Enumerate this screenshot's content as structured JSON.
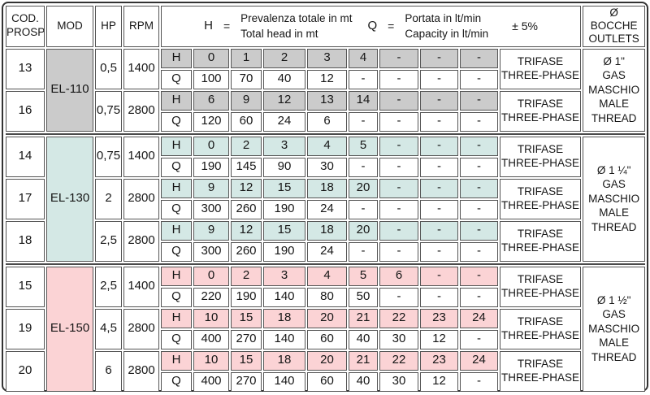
{
  "header": {
    "cod_line1": "COD.",
    "cod_line2": "PROSP.",
    "mod": "MOD",
    "hp": "HP",
    "rpm": "RPM",
    "h_symbol": "H",
    "h_equals": "=",
    "h_it": "Prevalenza totale in mt",
    "h_en": "Total head in mt",
    "q_symbol": "Q",
    "q_equals": "=",
    "q_it": "Portata in lt/min",
    "q_en": "Capacity in lt/min",
    "tolerance": "± 5%",
    "outlets_symbol": "Ø",
    "outlets_it": "BOCCHE",
    "outlets_en": "OUTLETS"
  },
  "row_labels": {
    "head": "H",
    "flow": "Q"
  },
  "colors": {
    "el110": "#cbcbcb",
    "el130": "#d4e8e5",
    "el150": "#fbd3d5",
    "cell_border": "#555555",
    "frame_border": "#333333"
  },
  "groups": [
    {
      "model": "EL-110",
      "color_key": "el110",
      "outlet_lines": [
        "Ø 1\"",
        "GAS",
        "MASCHIO",
        "MALE",
        "THREAD"
      ],
      "rows": [
        {
          "cod": "13",
          "hp": "0,5",
          "rpm": "1400",
          "h": [
            "0",
            "1",
            "2",
            "3",
            "4",
            "-",
            "-",
            "-"
          ],
          "q": [
            "100",
            "70",
            "40",
            "12",
            "-",
            "-",
            "-",
            "-"
          ],
          "phase_lines": [
            "TRIFASE",
            "THREE-PHASE"
          ]
        },
        {
          "cod": "16",
          "hp": "0,75",
          "rpm": "2800",
          "h": [
            "6",
            "9",
            "12",
            "13",
            "14",
            "-",
            "-",
            "-"
          ],
          "q": [
            "120",
            "60",
            "24",
            "6",
            "-",
            "-",
            "-",
            "-"
          ],
          "phase_lines": [
            "TRIFASE",
            "THREE-PHASE"
          ]
        }
      ]
    },
    {
      "model": "EL-130",
      "color_key": "el130",
      "outlet_lines": [
        "Ø 1 ¼\"",
        "GAS",
        "MASCHIO",
        "MALE",
        "THREAD"
      ],
      "rows": [
        {
          "cod": "14",
          "hp": "0,75",
          "rpm": "1400",
          "h": [
            "0",
            "2",
            "3",
            "4",
            "5",
            "-",
            "-",
            "-"
          ],
          "q": [
            "190",
            "145",
            "90",
            "30",
            "-",
            "-",
            "-",
            "-"
          ],
          "phase_lines": [
            "TRIFASE",
            "THREE-PHASE"
          ]
        },
        {
          "cod": "17",
          "hp": "2",
          "rpm": "2800",
          "h": [
            "9",
            "12",
            "15",
            "18",
            "20",
            "-",
            "-",
            "-"
          ],
          "q": [
            "300",
            "260",
            "190",
            "24",
            "-",
            "-",
            "-",
            "-"
          ],
          "phase_lines": [
            "TRIFASE",
            "THREE-PHASE"
          ]
        },
        {
          "cod": "18",
          "hp": "2,5",
          "rpm": "2800",
          "h": [
            "9",
            "12",
            "15",
            "18",
            "20",
            "-",
            "-",
            "-"
          ],
          "q": [
            "300",
            "260",
            "190",
            "24",
            "-",
            "-",
            "-",
            "-"
          ],
          "phase_lines": [
            "TRIFASE",
            "THREE-PHASE"
          ]
        }
      ]
    },
    {
      "model": "EL-150",
      "color_key": "el150",
      "outlet_lines": [
        "Ø 1 ½\"",
        "GAS",
        "MASCHIO",
        "MALE",
        "THREAD"
      ],
      "rows": [
        {
          "cod": "15",
          "hp": "2,5",
          "rpm": "1400",
          "h": [
            "0",
            "2",
            "3",
            "4",
            "5",
            "6",
            "-",
            "-"
          ],
          "q": [
            "220",
            "190",
            "140",
            "80",
            "50",
            "-",
            "-",
            "-"
          ],
          "phase_lines": [
            "TRIFASE",
            "THREE-PHASE"
          ]
        },
        {
          "cod": "19",
          "hp": "4,5",
          "rpm": "2800",
          "h": [
            "10",
            "15",
            "18",
            "20",
            "21",
            "22",
            "23",
            "24"
          ],
          "q": [
            "400",
            "270",
            "140",
            "60",
            "40",
            "30",
            "12",
            "-"
          ],
          "phase_lines": [
            "TRIFASE",
            "THREE-PHASE"
          ]
        },
        {
          "cod": "20",
          "hp": "6",
          "rpm": "2800",
          "h": [
            "10",
            "15",
            "18",
            "20",
            "21",
            "22",
            "23",
            "24"
          ],
          "q": [
            "400",
            "270",
            "140",
            "60",
            "40",
            "30",
            "12",
            "-"
          ],
          "phase_lines": [
            "TRIFASE",
            "THREE-PHASE"
          ]
        }
      ]
    }
  ]
}
